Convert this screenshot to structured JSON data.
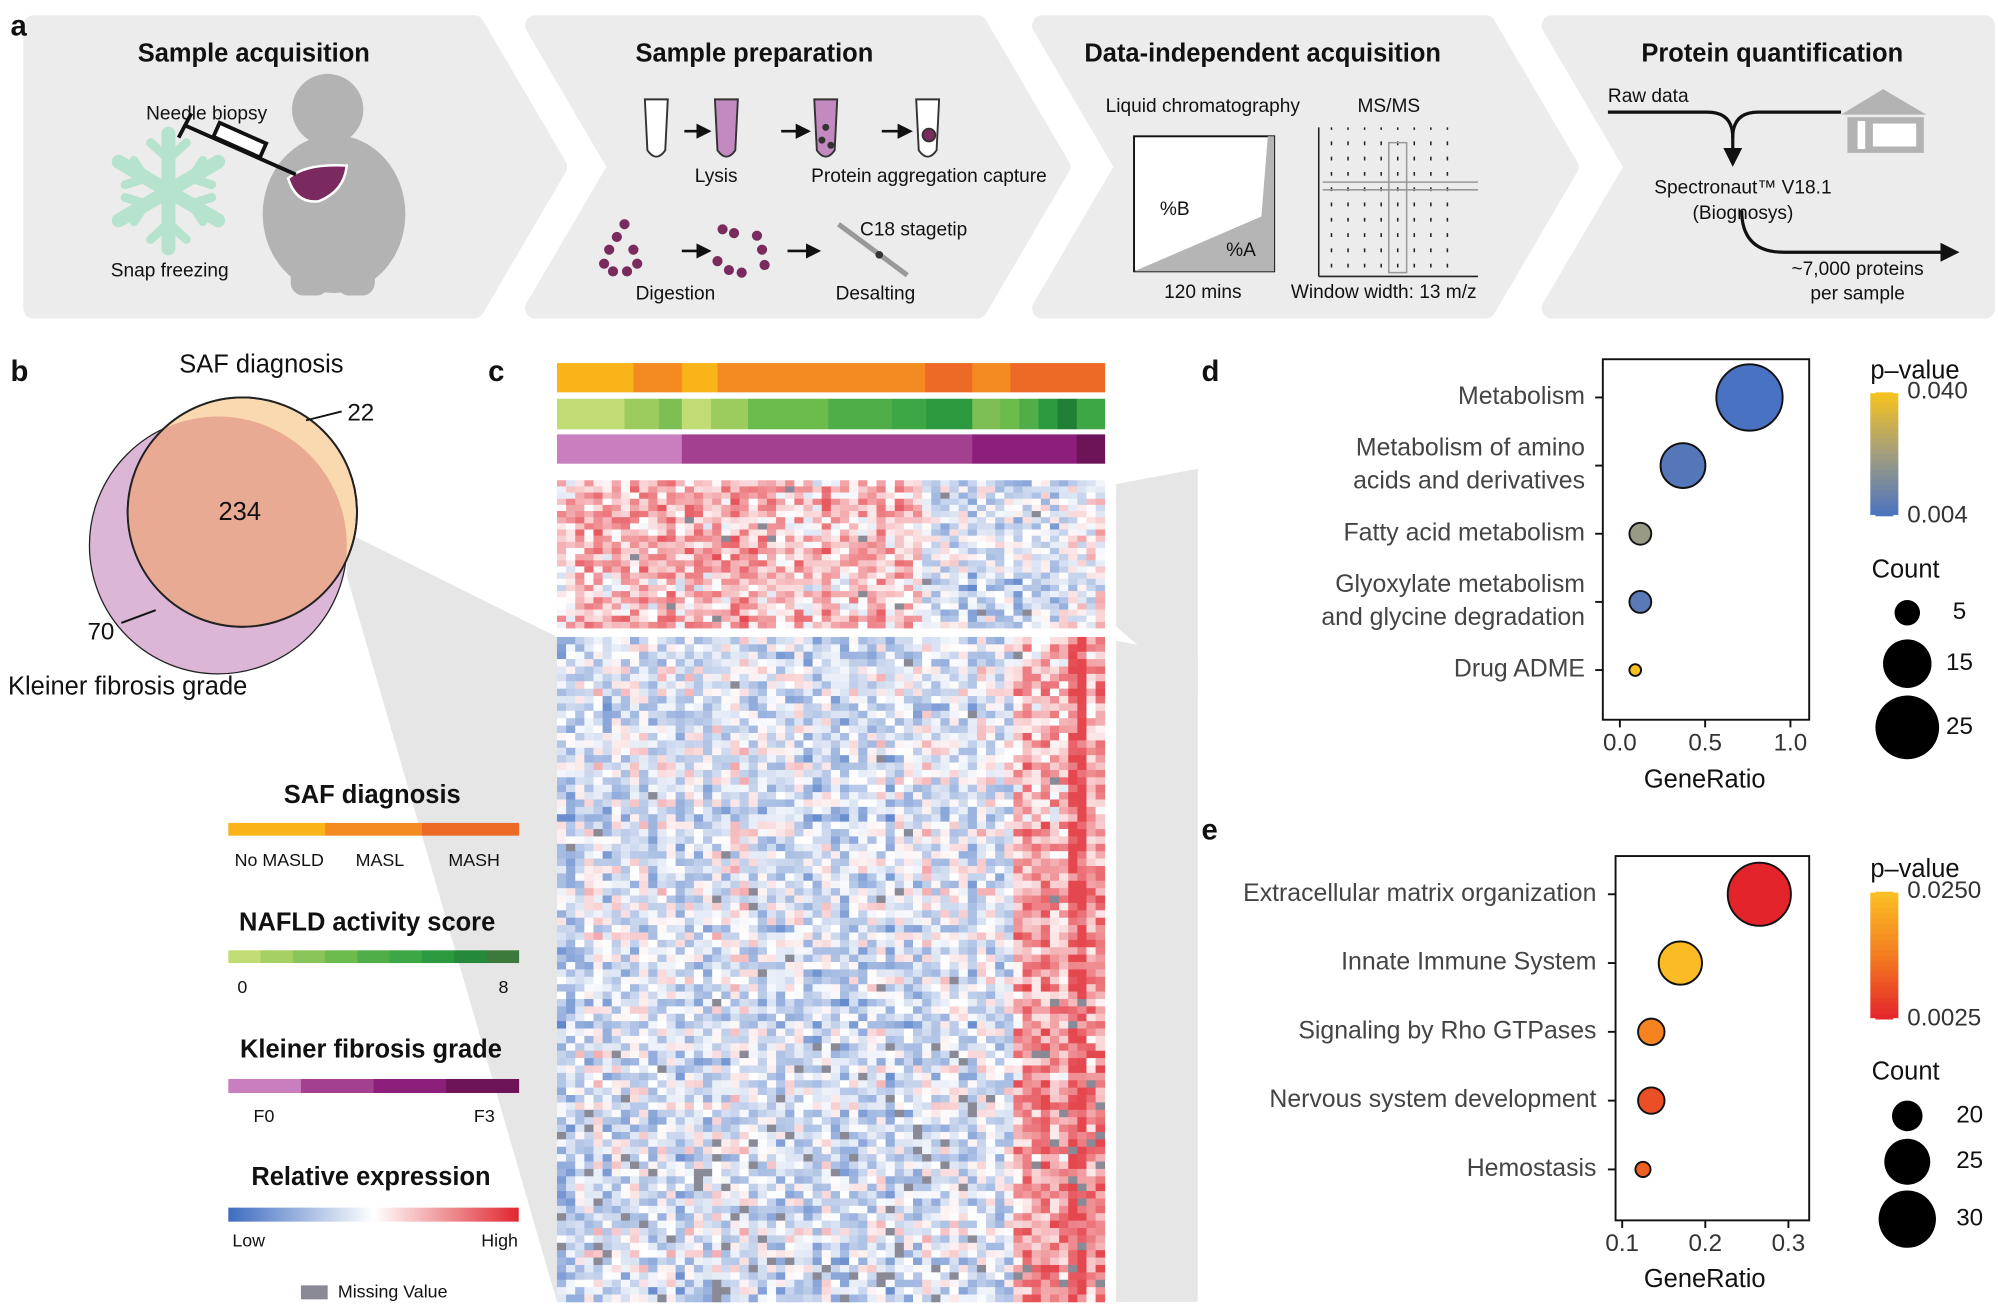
{
  "panel_labels": [
    "a",
    "b",
    "c",
    "d",
    "e"
  ],
  "workflow": [
    {
      "title": "Sample acquisition",
      "labels": [
        "Needle biopsy",
        "Snap freezing"
      ]
    },
    {
      "title": "Sample preparation",
      "labels": [
        "Lysis",
        "Protein aggregation capture",
        "Digestion",
        "C18 stagetip",
        "Desalting"
      ]
    },
    {
      "title": "Data-independent acquisition",
      "labels": [
        "Liquid chromatography",
        "MS/MS",
        "%B",
        "%A",
        "120 mins",
        "Window width: 13 m/z"
      ]
    },
    {
      "title": "Protein quantification",
      "labels": [
        "Raw data",
        "Spectronaut™ V18.1",
        "(Biognosys)",
        "~7,000 proteins",
        "per sample"
      ]
    }
  ],
  "venn": {
    "top_title": "SAF diagnosis",
    "top_only": 22,
    "both": 234,
    "bottom_only": 70,
    "bottom_title": "Kleiner fibrosis grade"
  },
  "legend": {
    "saf": {
      "title": "SAF diagnosis",
      "labels": [
        "No MASLD",
        "MASL",
        "MASH"
      ]
    },
    "nas": {
      "title": "NAFLD activity score",
      "labels": [
        "0",
        "8"
      ]
    },
    "kleiner": {
      "title": "Kleiner fibrosis grade",
      "labels": [
        "F0",
        "F3"
      ]
    },
    "expression": {
      "title": "Relative expression",
      "labels": [
        "Low",
        "High"
      ]
    },
    "missing": "Missing Value"
  },
  "chart_data": [
    {
      "type": "dot",
      "x_label": "GeneRatio",
      "categories": [
        [
          "Metabolism"
        ],
        [
          "Metabolism of amino",
          "acids and derivatives"
        ],
        [
          "Fatty acid metabolism"
        ],
        [
          "Glyoxylate metabolism",
          "and glycine degradation"
        ],
        [
          "Drug ADME"
        ]
      ],
      "values": [
        0.76,
        0.37,
        0.12,
        0.12,
        0.09
      ],
      "counts": [
        27,
        13,
        4,
        4,
        2
      ],
      "p_values": [
        0.004,
        0.006,
        0.02,
        0.007,
        0.04
      ],
      "xlim": [
        -0.1,
        1.11
      ],
      "xticks": [
        {
          "value": 0,
          "label": "0.0"
        },
        0.5,
        {
          "value": 1,
          "label": "1.0"
        }
      ],
      "color_title": "p–value",
      "clim": [
        0.004,
        0.04
      ],
      "cticks": [
        {
          "value": 0.04,
          "label": "0.040"
        },
        0.004
      ],
      "colors": [
        "#4a72c2",
        "#a39f7e",
        "#f7c21a"
      ],
      "size_title": "Count",
      "size_ticks": [
        5,
        15,
        25
      ]
    },
    {
      "type": "dot",
      "x_label": "GeneRatio",
      "categories": [
        [
          "Extracellular matrix organization"
        ],
        [
          "Innate Immune System"
        ],
        [
          "Signaling by Rho GTPases"
        ],
        [
          "Nervous system development"
        ],
        [
          "Hemostasis"
        ]
      ],
      "values": [
        0.265,
        0.17,
        0.135,
        0.135,
        0.125
      ],
      "counts": [
        33,
        24,
        19,
        19,
        17
      ],
      "p_values": [
        0.0025,
        0.024,
        0.015,
        0.008,
        0.01
      ],
      "xlim": [
        0.092,
        0.325
      ],
      "xticks": [
        0.1,
        0.2,
        0.3
      ],
      "color_title": "p–value",
      "clim": [
        0.0025,
        0.025
      ],
      "cticks": [
        {
          "value": 0.025,
          "label": "0.0250"
        },
        0.0025
      ],
      "colors": [
        "#e3242b",
        "#f47c20",
        "#fbc124"
      ],
      "size_title": "Count",
      "size_ticks": [
        20,
        25,
        30
      ]
    }
  ]
}
